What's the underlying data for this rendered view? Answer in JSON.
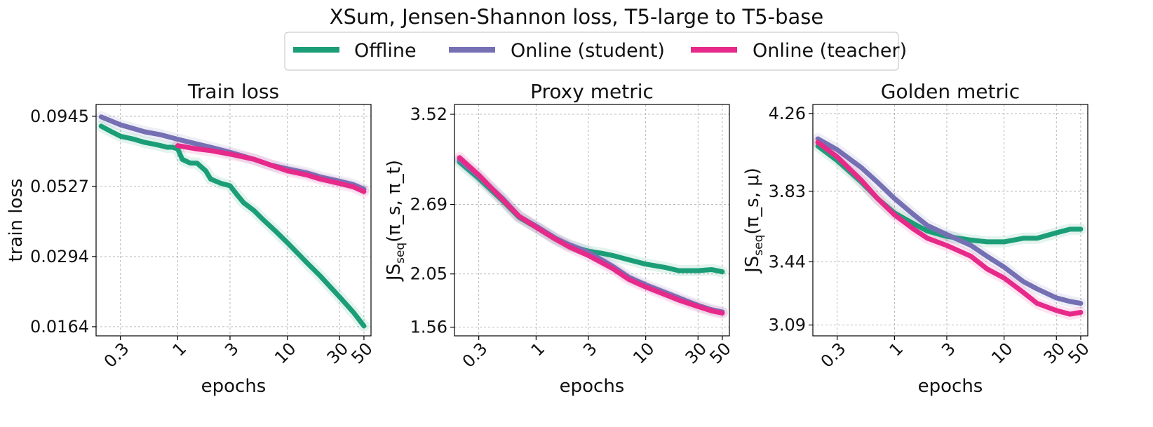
{
  "suptitle": "XSum, Jensen-Shannon loss, T5-large to T5-base",
  "colors": {
    "offline": "#1b9e77",
    "online_student": "#7570b3",
    "online_teacher": "#e7298a"
  },
  "legend": {
    "placement": "top-center",
    "items": [
      {
        "label": "Offline",
        "color": "#1b9e77"
      },
      {
        "label": "Online (student)",
        "color": "#7570b3"
      },
      {
        "label": "Online (teacher)",
        "color": "#e7298a"
      }
    ]
  },
  "chart_data": [
    {
      "type": "line",
      "title": "Train loss",
      "xlabel": "epochs",
      "ylabel": "train loss",
      "xscale": "log",
      "yscale": "log",
      "xlim": [
        0.18,
        58
      ],
      "ylim": [
        0.0152,
        0.1042
      ],
      "xticks": [
        0.3,
        1,
        3,
        10,
        30,
        50
      ],
      "xtick_labels": [
        "0.3",
        "1",
        "3",
        "10",
        "30",
        "50"
      ],
      "yticks": [
        0.0164,
        0.0294,
        0.0527,
        0.0945
      ],
      "ytick_labels": [
        "0.0164",
        "0.0294",
        "0.0527",
        "0.0945"
      ],
      "grid": true,
      "series": [
        {
          "name": "Offline",
          "color": "#1b9e77",
          "x": [
            0.2,
            0.25,
            0.3,
            0.4,
            0.5,
            0.6,
            0.7,
            0.8,
            0.9,
            1.0,
            1.1,
            1.3,
            1.5,
            1.8,
            2.0,
            2.5,
            3.0,
            3.5,
            4,
            5,
            6,
            8,
            10,
            15,
            20,
            30,
            40,
            50
          ],
          "y": [
            0.087,
            0.083,
            0.08,
            0.078,
            0.076,
            0.075,
            0.074,
            0.073,
            0.073,
            0.072,
            0.066,
            0.064,
            0.064,
            0.06,
            0.056,
            0.054,
            0.053,
            0.049,
            0.046,
            0.043,
            0.04,
            0.036,
            0.033,
            0.028,
            0.025,
            0.021,
            0.0185,
            0.0165
          ]
        },
        {
          "name": "Online (student)",
          "color": "#7570b3",
          "x": [
            0.2,
            0.3,
            0.5,
            0.7,
            1.0,
            1.5,
            2,
            3,
            5,
            7,
            10,
            15,
            20,
            30,
            40,
            50
          ],
          "y": [
            0.094,
            0.088,
            0.083,
            0.081,
            0.078,
            0.075,
            0.073,
            0.07,
            0.066,
            0.063,
            0.061,
            0.059,
            0.057,
            0.055,
            0.0535,
            0.0515
          ]
        },
        {
          "name": "Online (teacher)",
          "color": "#e7298a",
          "x": [
            1.0,
            1.5,
            2,
            3,
            5,
            7,
            10,
            15,
            20,
            30,
            40,
            50
          ],
          "y": [
            0.074,
            0.072,
            0.071,
            0.069,
            0.066,
            0.063,
            0.06,
            0.058,
            0.056,
            0.054,
            0.0525,
            0.0505
          ]
        }
      ]
    },
    {
      "type": "line",
      "title": "Proxy metric",
      "xlabel": "epochs",
      "ylabel": "JS_seq(π_s, π_t)",
      "xscale": "log",
      "xlim": [
        0.18,
        58
      ],
      "ylim": [
        1.48,
        3.61
      ],
      "xticks": [
        0.3,
        1,
        3,
        10,
        30,
        50
      ],
      "xtick_labels": [
        "0.3",
        "1",
        "3",
        "10",
        "30",
        "50"
      ],
      "yticks": [
        1.56,
        2.05,
        2.69,
        3.52
      ],
      "ytick_labels": [
        "1.56",
        "2.05",
        "2.69",
        "3.52"
      ],
      "grid": true,
      "series": [
        {
          "name": "Offline",
          "color": "#1b9e77",
          "x": [
            0.2,
            0.3,
            0.5,
            0.7,
            1.0,
            1.5,
            2,
            3,
            4,
            5,
            7,
            10,
            15,
            20,
            30,
            40,
            50
          ],
          "y": [
            3.08,
            2.93,
            2.72,
            2.57,
            2.48,
            2.37,
            2.31,
            2.26,
            2.24,
            2.22,
            2.18,
            2.14,
            2.11,
            2.08,
            2.08,
            2.09,
            2.07
          ]
        },
        {
          "name": "Online (student)",
          "color": "#7570b3",
          "x": [
            0.2,
            0.3,
            0.5,
            0.7,
            1.0,
            1.5,
            2,
            3,
            5,
            7,
            10,
            15,
            20,
            30,
            40,
            50
          ],
          "y": [
            3.1,
            2.95,
            2.74,
            2.58,
            2.49,
            2.38,
            2.32,
            2.25,
            2.12,
            2.02,
            1.95,
            1.88,
            1.83,
            1.76,
            1.72,
            1.7
          ]
        },
        {
          "name": "Online (teacher)",
          "color": "#e7298a",
          "x": [
            0.2,
            0.3,
            0.5,
            0.7,
            1.0,
            1.5,
            2,
            3,
            5,
            7,
            10,
            15,
            20,
            30,
            40,
            50
          ],
          "y": [
            3.12,
            2.96,
            2.73,
            2.58,
            2.48,
            2.37,
            2.3,
            2.22,
            2.1,
            2.0,
            1.93,
            1.86,
            1.81,
            1.75,
            1.71,
            1.69
          ]
        }
      ]
    },
    {
      "type": "line",
      "title": "Golden metric",
      "xlabel": "epochs",
      "ylabel": "JS_seq(π_s, μ)",
      "xscale": "log",
      "xlim": [
        0.18,
        58
      ],
      "ylim": [
        3.03,
        4.31
      ],
      "xticks": [
        0.3,
        1,
        3,
        10,
        30,
        50
      ],
      "xtick_labels": [
        "0.3",
        "1",
        "3",
        "10",
        "30",
        "50"
      ],
      "yticks": [
        3.09,
        3.44,
        3.83,
        4.26
      ],
      "ytick_labels": [
        "3.09",
        "3.44",
        "3.83",
        "4.26"
      ],
      "grid": true,
      "series": [
        {
          "name": "Offline",
          "color": "#1b9e77",
          "x": [
            0.2,
            0.3,
            0.5,
            0.7,
            1.0,
            1.5,
            2,
            3,
            5,
            7,
            10,
            15,
            20,
            30,
            40,
            50
          ],
          "y": [
            4.08,
            4.0,
            3.88,
            3.79,
            3.71,
            3.65,
            3.61,
            3.58,
            3.56,
            3.55,
            3.55,
            3.57,
            3.57,
            3.6,
            3.62,
            3.62
          ]
        },
        {
          "name": "Online (student)",
          "color": "#7570b3",
          "x": [
            0.2,
            0.3,
            0.5,
            0.7,
            1.0,
            1.5,
            2,
            3,
            5,
            7,
            10,
            15,
            20,
            30,
            40,
            50
          ],
          "y": [
            4.12,
            4.06,
            3.96,
            3.88,
            3.79,
            3.7,
            3.64,
            3.59,
            3.53,
            3.47,
            3.41,
            3.33,
            3.29,
            3.24,
            3.22,
            3.21
          ]
        },
        {
          "name": "Online (teacher)",
          "color": "#e7298a",
          "x": [
            0.2,
            0.3,
            0.5,
            0.7,
            1.0,
            1.5,
            2,
            3,
            5,
            7,
            10,
            15,
            20,
            30,
            40,
            50
          ],
          "y": [
            4.1,
            4.02,
            3.89,
            3.79,
            3.7,
            3.62,
            3.57,
            3.53,
            3.47,
            3.4,
            3.35,
            3.27,
            3.21,
            3.17,
            3.15,
            3.16
          ]
        }
      ]
    }
  ]
}
